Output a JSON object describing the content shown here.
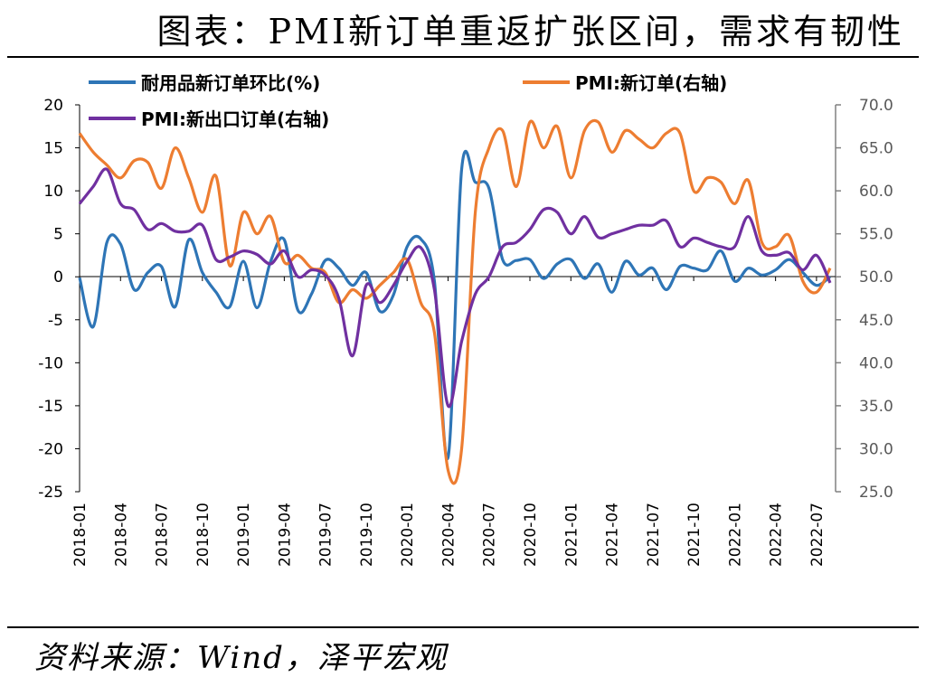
{
  "header": {
    "title": "图表：PMI新订单重返扩张区间，需求有韧性"
  },
  "footer": {
    "source": "资料来源：Wind，泽平宏观"
  },
  "chart_data": {
    "type": "line",
    "x": [
      "2018-01",
      "2018-02",
      "2018-03",
      "2018-04",
      "2018-05",
      "2018-06",
      "2018-07",
      "2018-08",
      "2018-09",
      "2018-10",
      "2018-11",
      "2018-12",
      "2019-01",
      "2019-02",
      "2019-03",
      "2019-04",
      "2019-05",
      "2019-06",
      "2019-07",
      "2019-08",
      "2019-09",
      "2019-10",
      "2019-11",
      "2019-12",
      "2020-01",
      "2020-02",
      "2020-03",
      "2020-04",
      "2020-05",
      "2020-06",
      "2020-07",
      "2020-08",
      "2020-09",
      "2020-10",
      "2020-11",
      "2020-12",
      "2021-01",
      "2021-02",
      "2021-03",
      "2021-04",
      "2021-05",
      "2021-06",
      "2021-07",
      "2021-08",
      "2021-09",
      "2021-10",
      "2021-11",
      "2021-12",
      "2022-01",
      "2022-02",
      "2022-03",
      "2022-04",
      "2022-05",
      "2022-06",
      "2022-07",
      "2022-08"
    ],
    "x_tick_labels": [
      "2018-01",
      "2018-04",
      "2018-07",
      "2018-10",
      "2019-01",
      "2019-04",
      "2019-07",
      "2019-10",
      "2020-01",
      "2020-04",
      "2020-07",
      "2020-10",
      "2021-01",
      "2021-04",
      "2021-07",
      "2021-10",
      "2022-01",
      "2022-04",
      "2022-07"
    ],
    "y_left": {
      "lim": [
        -25,
        20
      ],
      "ticks": [
        "20",
        "15",
        "10",
        "5",
        "0",
        "-5",
        "-10",
        "-15",
        "-20",
        "-25"
      ],
      "step": 5
    },
    "y_right": {
      "lim": [
        25,
        70
      ],
      "ticks": [
        "70.0",
        "65.0",
        "60.0",
        "55.0",
        "50.0",
        "45.0",
        "40.0",
        "35.0",
        "30.0",
        "25.0"
      ],
      "step": 5
    },
    "legend": [
      "耐用品新订单环比(%)",
      "PMI:新订单(右轴)",
      "PMI:新出口订单(右轴)"
    ],
    "series": [
      {
        "name": "耐用品新订单环比(%)",
        "axis": "left",
        "color": "#2E75B6",
        "values": [
          -0.1,
          -5.8,
          4.0,
          3.8,
          -1.5,
          0.5,
          1.2,
          -3.5,
          4.3,
          0.5,
          -1.8,
          -3.5,
          1.8,
          -3.6,
          1.8,
          4.3,
          -3.9,
          -2.0,
          1.9,
          1.0,
          -1.0,
          0.5,
          -4.0,
          -2.1,
          3.5,
          4.4,
          -0.5,
          -21.0,
          12.5,
          11.0,
          10.3,
          2.0,
          1.9,
          2.0,
          -0.2,
          1.5,
          2.0,
          -0.2,
          1.5,
          -1.8,
          1.8,
          0.2,
          1.0,
          -1.5,
          1.2,
          1.0,
          0.8,
          3.0,
          -0.5,
          1.0,
          0.2,
          0.8,
          2.0,
          0.5,
          -1.0,
          0.0
        ]
      },
      {
        "name": "PMI:新订单(右轴)",
        "axis": "right",
        "color": "#ED7D31",
        "values": [
          66.7,
          64.5,
          63.0,
          61.5,
          63.5,
          63.3,
          60.3,
          65.0,
          61.5,
          57.5,
          61.7,
          51.3,
          57.5,
          55.0,
          57.0,
          51.7,
          52.5,
          51.0,
          50.5,
          47.0,
          48.5,
          47.5,
          49.0,
          50.5,
          52.0,
          47.0,
          43.5,
          27.5,
          30.0,
          57.5,
          65.0,
          67.0,
          60.5,
          68.0,
          65.0,
          67.5,
          61.5,
          67.0,
          68.0,
          64.5,
          67.0,
          66.0,
          65.0,
          66.7,
          66.7,
          60.0,
          61.5,
          61.0,
          58.5,
          61.2,
          54.0,
          53.5,
          54.8,
          49.5,
          48.2,
          51.0
        ]
      },
      {
        "name": "PMI:新出口订单(右轴)",
        "axis": "right",
        "color": "#7030A0",
        "values": [
          58.5,
          60.5,
          62.5,
          58.5,
          57.8,
          55.5,
          56.2,
          55.3,
          55.3,
          56.0,
          52.0,
          52.3,
          53.0,
          52.6,
          51.5,
          53.0,
          50.0,
          50.8,
          50.2,
          47.5,
          40.8,
          49.0,
          47.0,
          49.0,
          51.8,
          53.4,
          48.5,
          35.0,
          42.5,
          48.0,
          50.0,
          53.5,
          54.0,
          55.5,
          57.8,
          57.5,
          55.0,
          57.0,
          54.6,
          55.0,
          55.5,
          56.0,
          56.0,
          56.5,
          53.5,
          54.5,
          54.0,
          53.5,
          53.5,
          57.0,
          53.0,
          52.5,
          52.8,
          50.8,
          52.5,
          49.3
        ]
      }
    ]
  }
}
